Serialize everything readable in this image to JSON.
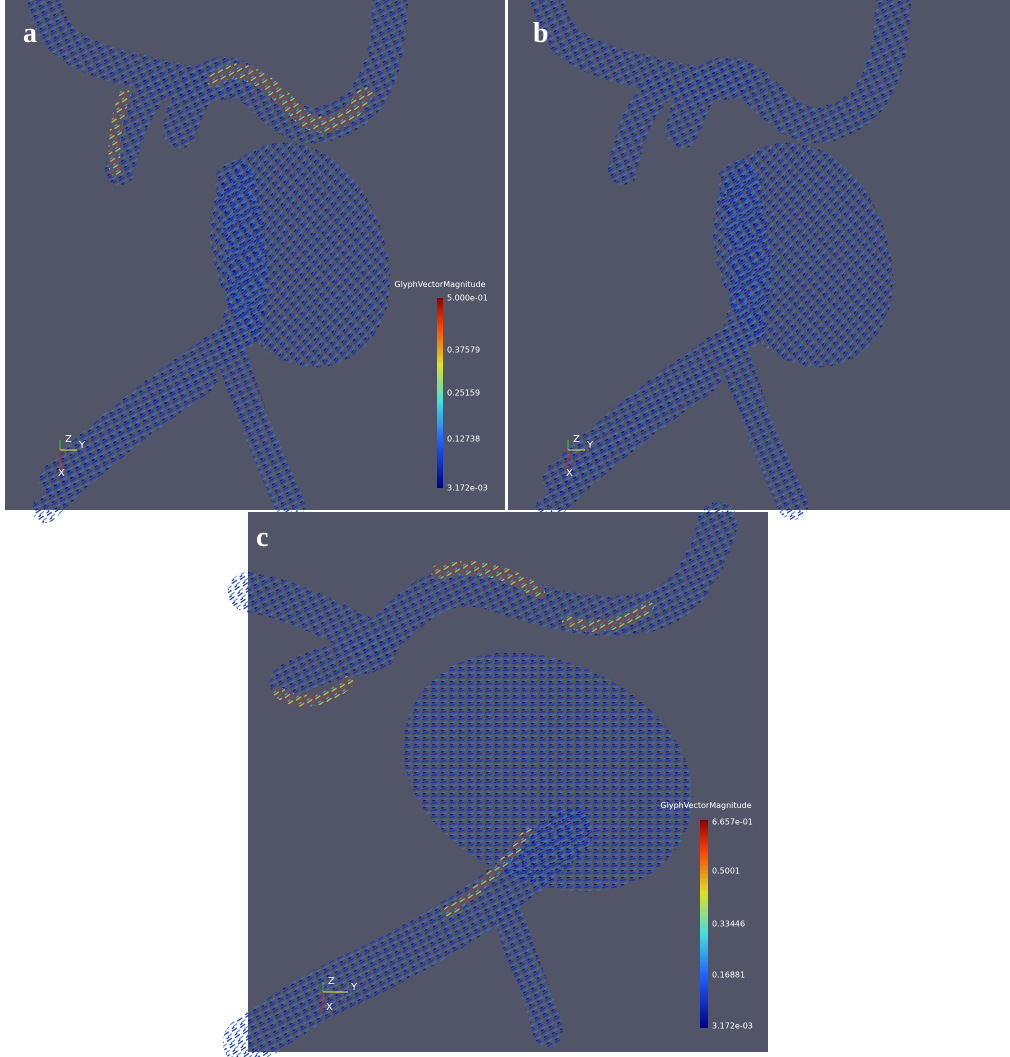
{
  "panels": [
    {
      "label": "a",
      "colorbar": {
        "title": "GlyphVectorMagnitude",
        "ticks": [
          "5.000e-01",
          "0.37579",
          "0.25159",
          "0.12738",
          "3.172e-03"
        ]
      },
      "axes": [
        "Z",
        "Y",
        "X"
      ]
    },
    {
      "label": "b",
      "axes": [
        "Z",
        "Y",
        "X"
      ]
    },
    {
      "label": "c",
      "colorbar": {
        "title": "GlyphVectorMagnitude",
        "ticks": [
          "6.657e-01",
          "0.5001",
          "0.33446",
          "0.16881",
          "3.172e-03"
        ]
      },
      "axes": [
        "Z",
        "Y",
        "X"
      ]
    }
  ]
}
